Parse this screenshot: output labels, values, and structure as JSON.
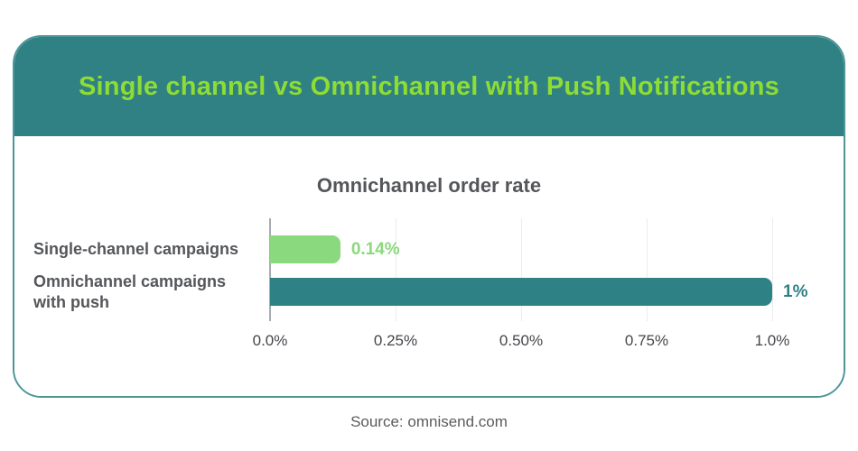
{
  "header": {
    "title": "Single channel vs Omnichannel with Push Notifications"
  },
  "chart_data": {
    "type": "bar",
    "orientation": "horizontal",
    "title": "Omnichannel order rate",
    "categories": [
      "Single-channel campaigns",
      "Omnichannel campaigns\nwith push"
    ],
    "values": [
      0.14,
      1.0
    ],
    "value_labels": [
      "0.14%",
      "1%"
    ],
    "bar_colors": [
      "#8BD97E",
      "#2E8285"
    ],
    "value_label_colors": [
      "#8BD97E",
      "#2E8285"
    ],
    "x_ticks": [
      "0.0%",
      "0.25%",
      "0.50%",
      "0.75%",
      "1.0%"
    ],
    "xlim": [
      0,
      1.0
    ],
    "xlabel": "",
    "ylabel": "",
    "grid": "vertical-light",
    "legend_position": "none"
  },
  "footer": {
    "source": "Source: omnisend.com"
  },
  "colors": {
    "page-bg": "#FFFFFF",
    "header-bg": "#2F8184",
    "header-title": "#8EDC34",
    "card-border": "#4E9598",
    "bar-green": "#8BD97E",
    "bar-teal": "#2E8285",
    "text-dark": "#54565A",
    "text-tick": "#45464A",
    "text-source": "#5A5B5E",
    "grid-color": "#ECECEC",
    "axis-color": "#A7ABB3"
  }
}
